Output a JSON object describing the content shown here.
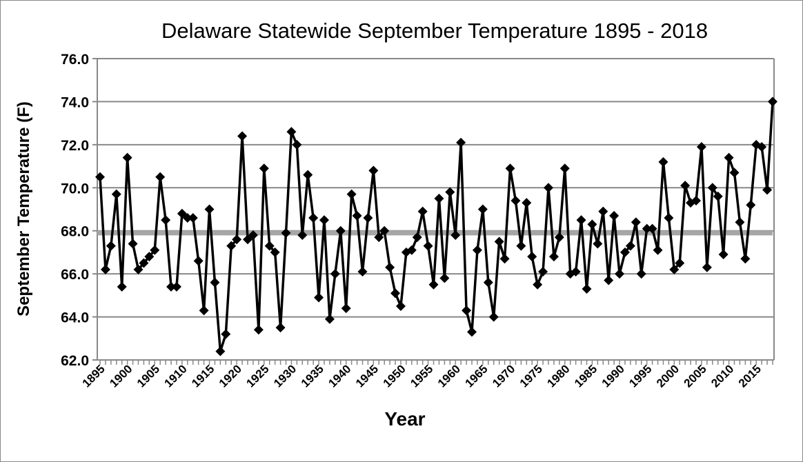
{
  "chart_data": {
    "type": "line",
    "title": "Delaware Statewide September Temperature 1895 - 2018",
    "xlabel": "Year",
    "ylabel": "September Temperature (F)",
    "ylim": [
      62.0,
      76.0
    ],
    "xlim": [
      1895,
      2018
    ],
    "yticks": [
      "62.0",
      "64.0",
      "66.0",
      "68.0",
      "70.0",
      "72.0",
      "74.0",
      "76.0"
    ],
    "xticks": [
      "1895",
      "1900",
      "1905",
      "1910",
      "1915",
      "1920",
      "1925",
      "1930",
      "1935",
      "1940",
      "1945",
      "1950",
      "1955",
      "1960",
      "1965",
      "1970",
      "1975",
      "1980",
      "1985",
      "1990",
      "1995",
      "2000",
      "2005",
      "2010",
      "2015"
    ],
    "grid": "horizontal",
    "series_color": "#000000",
    "mean_line": {
      "value": 67.9,
      "color": "#a6a6a6"
    },
    "x_start": 1895,
    "values": [
      70.5,
      66.2,
      67.3,
      69.7,
      65.4,
      71.4,
      67.4,
      66.2,
      66.5,
      66.8,
      67.1,
      70.5,
      68.5,
      65.4,
      65.4,
      68.8,
      68.6,
      68.6,
      66.6,
      64.3,
      69.0,
      65.6,
      62.4,
      63.2,
      67.3,
      67.6,
      72.4,
      67.6,
      67.8,
      63.4,
      70.9,
      67.3,
      67.0,
      63.5,
      67.9,
      72.6,
      72.0,
      67.8,
      70.6,
      68.6,
      64.9,
      68.5,
      63.9,
      66.0,
      68.0,
      64.4,
      69.7,
      68.7,
      66.1,
      68.6,
      70.8,
      67.7,
      68.0,
      66.3,
      65.1,
      64.5,
      67.0,
      67.1,
      67.7,
      68.9,
      67.3,
      65.5,
      69.5,
      65.8,
      69.8,
      67.8,
      72.1,
      64.3,
      63.3,
      67.1,
      69.0,
      65.6,
      64.0,
      67.5,
      66.7,
      70.9,
      69.4,
      67.3,
      69.3,
      66.8,
      65.5,
      66.1,
      70.0,
      66.8,
      67.7,
      70.9,
      66.0,
      66.1,
      68.5,
      65.3,
      68.3,
      67.4,
      68.9,
      65.7,
      68.7,
      66.0,
      67.0,
      67.3,
      68.4,
      66.0,
      68.1,
      68.1,
      67.1,
      71.2,
      68.6,
      66.2,
      66.5,
      70.1,
      69.3,
      69.4,
      71.9,
      66.3,
      70.0,
      69.6,
      66.9,
      71.4,
      70.7,
      68.4,
      66.7,
      69.2,
      72.0,
      71.9,
      69.9,
      74.0
    ]
  }
}
